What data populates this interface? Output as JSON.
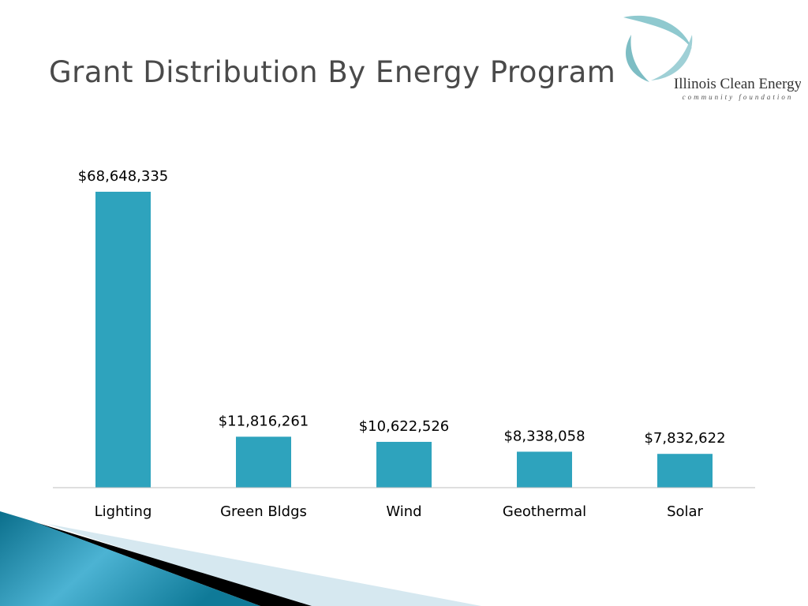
{
  "title": "Grant Distribution By Energy Program",
  "logo": {
    "name": "Illinois Clean Energy",
    "tagline": "community foundation"
  },
  "colors": {
    "bar": "#2ea3bd",
    "title": "#4a4a4a",
    "axis": "#bfbfbf"
  },
  "chart_data": {
    "type": "bar",
    "title": "Grant Distribution By Energy Program",
    "xlabel": "",
    "ylabel": "",
    "categories": [
      "Lighting",
      "Green Bldgs",
      "Wind",
      "Geothermal",
      "Solar"
    ],
    "values": [
      68648335,
      11816261,
      10622526,
      8338058,
      7832622
    ],
    "data_labels": [
      "$68,648,335",
      "$11,816,261",
      "$10,622,526",
      "$8,338,058",
      "$7,832,622"
    ],
    "ylim": [
      0,
      68648335
    ],
    "grid": false,
    "legend": "none"
  }
}
